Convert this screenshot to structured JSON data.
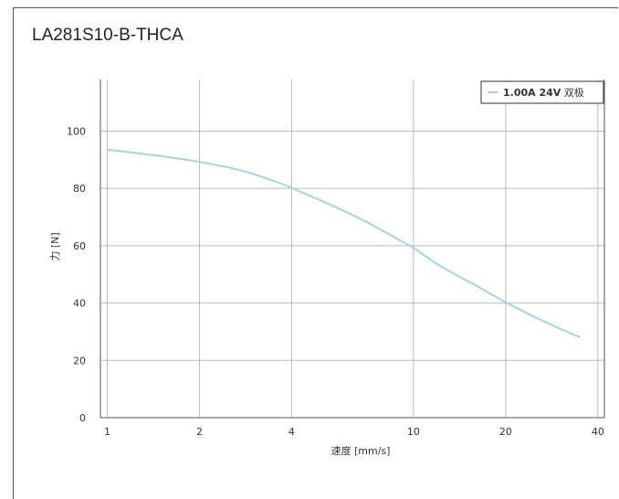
{
  "page": {
    "title": "LA281S10-B-THCA"
  },
  "chart_data": {
    "type": "line",
    "title": "LA281S10-B-THCA",
    "xlabel": "速度 [mm/s]",
    "ylabel": "力 [N]",
    "x_scale": "log",
    "xlim": [
      0.95,
      42
    ],
    "ylim": [
      0,
      118
    ],
    "x_ticks": [
      1,
      2,
      4,
      10,
      20,
      40
    ],
    "y_ticks": [
      0,
      20,
      40,
      60,
      80,
      100
    ],
    "grid": true,
    "legend": {
      "position": "top-right",
      "bold": "1.00A 24V",
      "suffix": " 双极"
    },
    "series": [
      {
        "name": "1.00A 24V 双极",
        "color": "#9fd6df",
        "x": [
          1,
          1.5,
          2,
          2.5,
          3,
          3.5,
          4,
          5,
          6,
          7,
          8,
          9,
          10,
          12,
          14,
          16,
          18,
          20,
          25,
          30,
          35
        ],
        "y": [
          93.5,
          91.3,
          89.3,
          87.3,
          85.1,
          82.6,
          80.2,
          75.7,
          71.9,
          68.4,
          65.0,
          62.0,
          59.3,
          53.4,
          49.4,
          46.1,
          43.0,
          40.2,
          35.0,
          31.1,
          28.0
        ]
      }
    ]
  }
}
